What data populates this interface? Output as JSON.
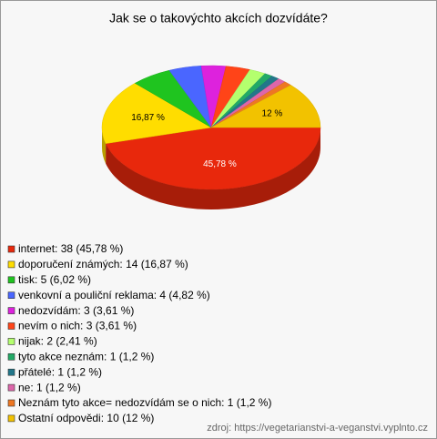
{
  "chart_data": {
    "type": "pie3d",
    "title": "Jak se o takovýchto akcích dozvídáte?",
    "categories": [
      "internet: 38 (45,78 %)",
      "doporučení známých: 14 (16,87 %)",
      "tisk: 5 (6,02 %)",
      "venkovní a pouliční reklama: 4 (4,82 %)",
      "nedozvídám: 3 (3,61 %)",
      "nevím o nich: 3 (3,61 %)",
      "nijak: 2 (2,41 %)",
      "tyto akce neznám: 1 (1,2 %)",
      "přátelé: 1 (1,2 %)",
      "ne: 1 (1,2 %)",
      "Neznám tyto akce= nedozvídám se o nich: 1 (1,2 %)",
      "Ostatní odpovědi: 10 (12 %)"
    ],
    "values": [
      45.78,
      16.87,
      6.02,
      4.82,
      3.61,
      3.61,
      2.41,
      1.2,
      1.2,
      1.2,
      1.2,
      12
    ],
    "value_labels": [
      "45,78 %",
      "16,87 %",
      null,
      null,
      null,
      null,
      null,
      null,
      null,
      null,
      null,
      "12 %"
    ],
    "colors": [
      "#e8280c",
      "#ffdd00",
      "#1fc41f",
      "#4a66ff",
      "#dd22dd",
      "#ff4418",
      "#b4ff6e",
      "#22aa66",
      "#22778a",
      "#dd66aa",
      "#ee7722",
      "#f2c200"
    ],
    "source": "zdroj: https://vegetarianstvi-a-veganstvi.vyplnto.cz"
  }
}
